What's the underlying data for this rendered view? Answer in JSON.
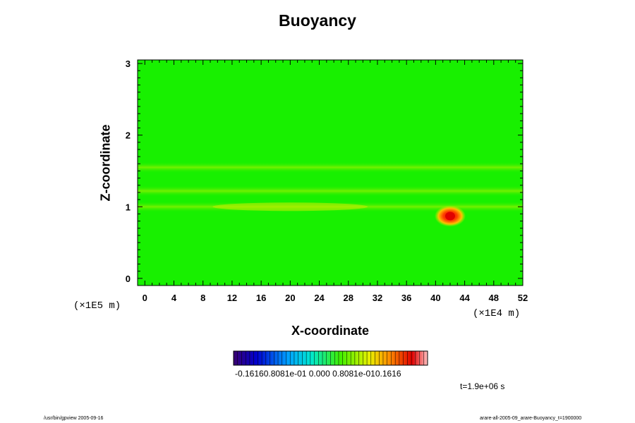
{
  "chart_data": {
    "type": "heatmap",
    "title": "Buoyancy",
    "xlabel": "X-coordinate",
    "ylabel": "Z-coordinate",
    "x_unit": "(×1E4 m)",
    "y_unit": "(×1E5 m)",
    "x_ticks": [
      "0",
      "4",
      "8",
      "12",
      "16",
      "20",
      "24",
      "28",
      "32",
      "36",
      "40",
      "44",
      "48",
      "52"
    ],
    "y_ticks": [
      "0",
      "1",
      "2",
      "3"
    ],
    "xlim": [
      -1,
      52
    ],
    "ylim": [
      -0.1,
      3.05
    ],
    "colorbar_range": [
      -0.1616,
      0.1616
    ],
    "colorbar_label": "-0.16160.8081e-01 0.000 0.8081e-010.1616",
    "time_label": "t=1.9e+06 s",
    "features": [
      {
        "kind": "band",
        "z": 1.55,
        "value": 0.025
      },
      {
        "kind": "band",
        "z": 1.22,
        "value": 0.02
      },
      {
        "kind": "band",
        "z": 1.0,
        "value": 0.03
      },
      {
        "kind": "peak",
        "x": 42,
        "z": 0.87,
        "value": 0.16
      }
    ],
    "colors": {
      "background": "#18f000",
      "band_light": "#8cf000",
      "band_yellow": "#c8ec00",
      "peak_red": "#e00000",
      "peak_orange": "#ff8000"
    }
  },
  "footer": {
    "left": "/usr/bin/gpview 2005-09-16",
    "right": "arare-all-2005-09_arare-Buoyancy_t=1900000"
  }
}
